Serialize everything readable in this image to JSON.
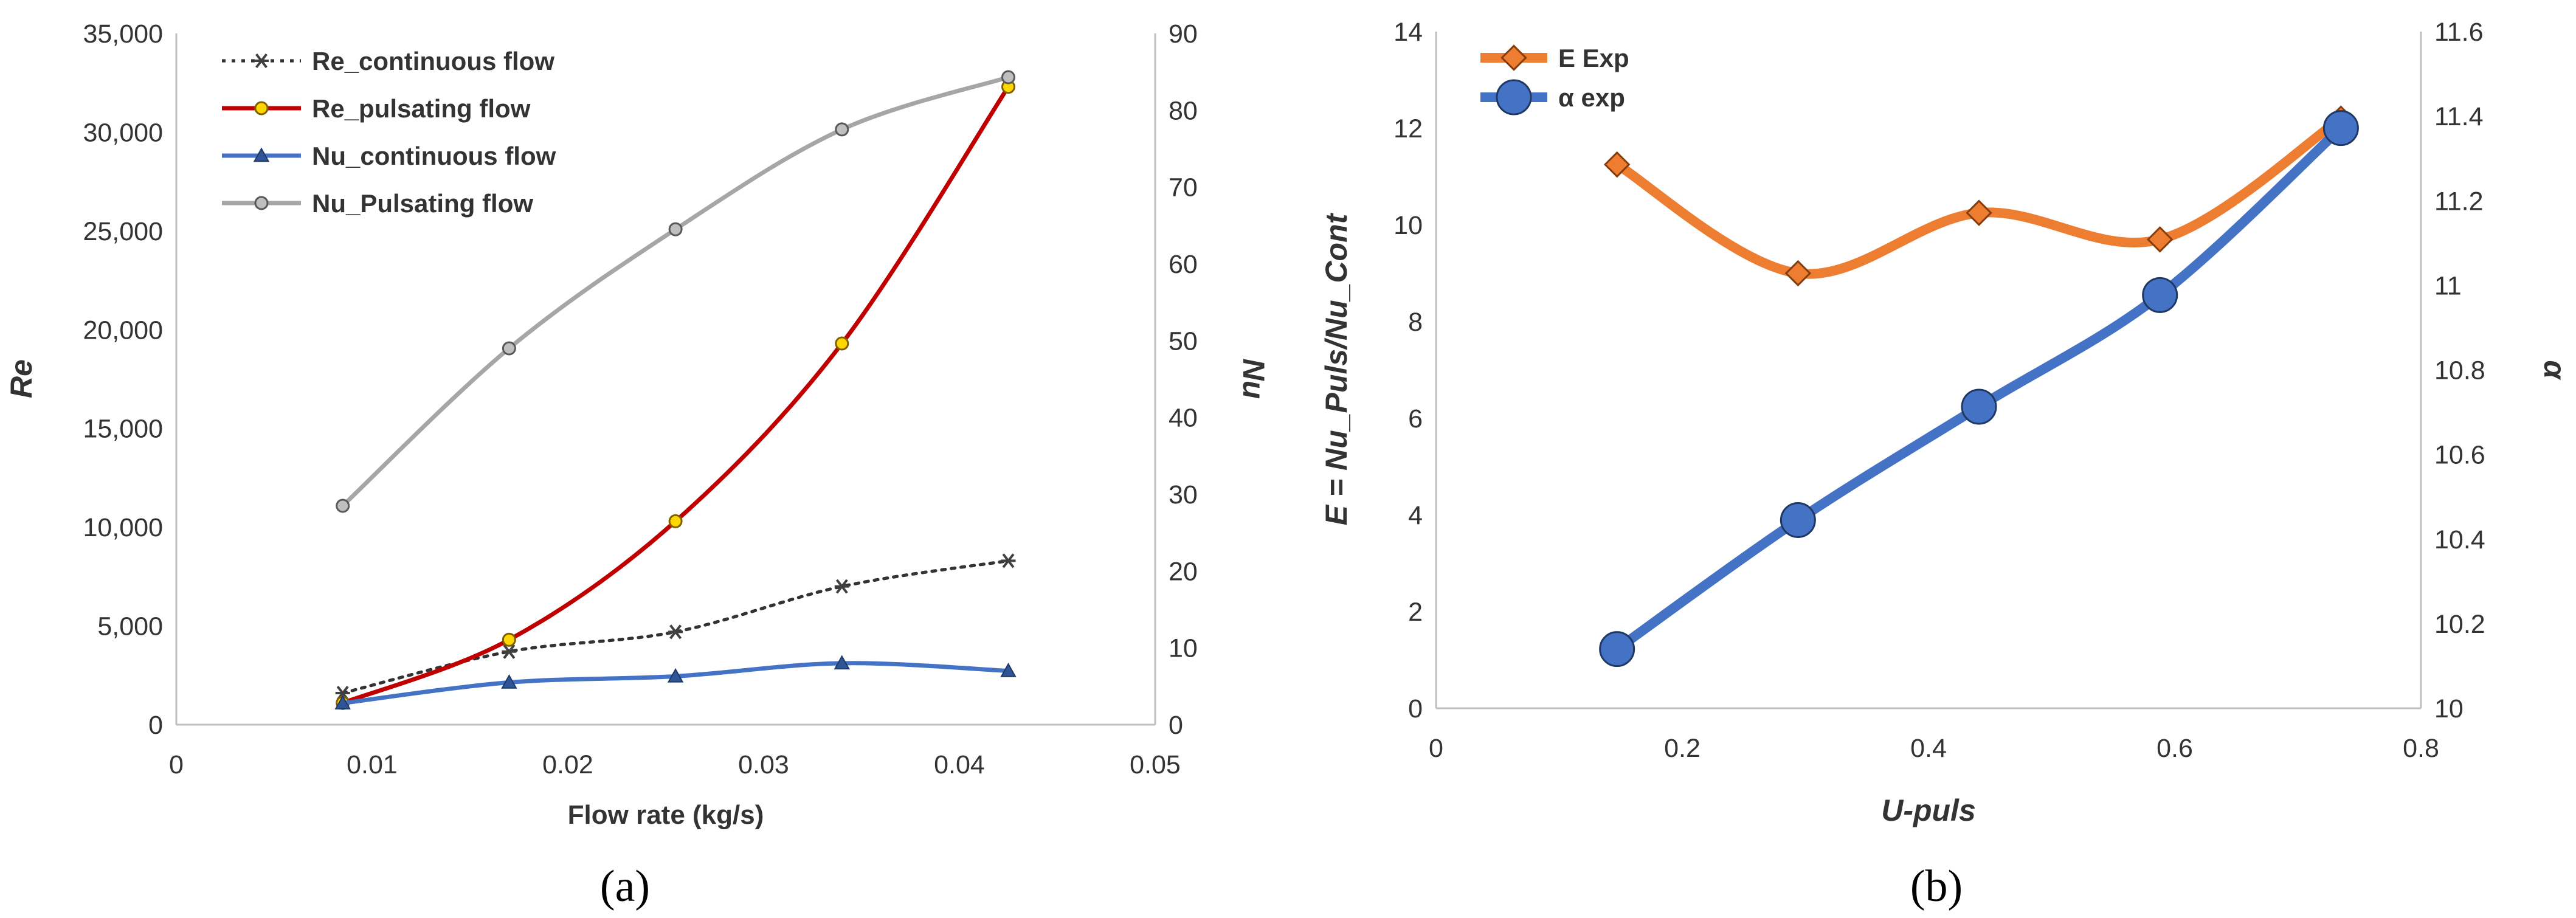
{
  "chart_data": [
    {
      "type": "line",
      "panel_label": "(a)",
      "xlabel": "Flow rate (kg/s)",
      "ylabel_left": "Re",
      "ylabel_right": "Nu",
      "xlim": [
        0,
        0.05
      ],
      "xticks": [
        "0",
        "0.01",
        "0.02",
        "0.03",
        "0.04",
        "0.05"
      ],
      "ylim_left": [
        0,
        35000
      ],
      "yticks_left": [
        "0",
        "5,000",
        "10,000",
        "15,000",
        "20,000",
        "25,000",
        "30,000",
        "35,000"
      ],
      "ylim_right": [
        0,
        90
      ],
      "yticks_right": [
        "0",
        "10",
        "20",
        "30",
        "40",
        "50",
        "60",
        "70",
        "80",
        "90"
      ],
      "grid": false,
      "legend_position": "top-left",
      "x": [
        0.0085,
        0.017,
        0.0255,
        0.034,
        0.0425
      ],
      "series": [
        {
          "name": "Re_continuous flow",
          "axis": "left",
          "color": "#333333",
          "dashed": true,
          "marker": "asterisk",
          "values": [
            1600,
            3700,
            4700,
            7000,
            8300
          ]
        },
        {
          "name": "Re_pulsating flow",
          "axis": "left",
          "color": "#c00000",
          "dashed": false,
          "marker": "circle-yellow",
          "values": [
            1100,
            4300,
            10300,
            19300,
            32300
          ]
        },
        {
          "name": "Nu_continuous flow",
          "axis": "right",
          "color": "#4472c4",
          "dashed": false,
          "marker": "triangle",
          "values": [
            2.8,
            5.5,
            6.3,
            8.0,
            7.0
          ]
        },
        {
          "name": "Nu_Pulsating flow",
          "axis": "right",
          "color": "#a6a6a6",
          "dashed": false,
          "marker": "circle-grey",
          "values": [
            28.5,
            49,
            64.5,
            77.5,
            84.3
          ]
        }
      ]
    },
    {
      "type": "line",
      "panel_label": "(b)",
      "xlabel": "U-puls",
      "ylabel_left": "E = Nu_Puls/Nu_Cont",
      "ylabel_right": "α",
      "xlim": [
        0,
        0.8
      ],
      "xticks": [
        "0",
        "0.2",
        "0.4",
        "0.6",
        "0.8"
      ],
      "ylim_left": [
        0,
        14
      ],
      "yticks_left": [
        "0",
        "2",
        "4",
        "6",
        "8",
        "10",
        "12",
        "14"
      ],
      "ylim_right": [
        10,
        11.6
      ],
      "yticks_right": [
        "10",
        "10.2",
        "10.4",
        "10.6",
        "10.8",
        "11",
        "11.2",
        "11.4",
        "11.6"
      ],
      "grid": false,
      "legend_position": "top-left",
      "x": [
        0.147,
        0.294,
        0.441,
        0.588,
        0.735
      ],
      "series": [
        {
          "name": "E Exp",
          "axis": "left",
          "color": "#ed7d31",
          "marker": "diamond",
          "values": [
            11.25,
            9.0,
            10.25,
            9.7,
            12.2
          ]
        },
        {
          "name": "α exp",
          "axis": "right",
          "color": "#4472c4",
          "marker": "circle",
          "values": [
            10.14,
            10.445,
            10.713,
            10.977,
            11.372
          ]
        }
      ]
    }
  ]
}
